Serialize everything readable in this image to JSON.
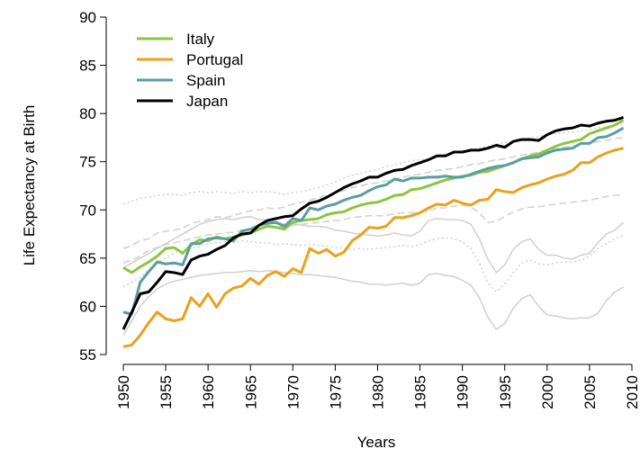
{
  "chart_data": {
    "type": "line",
    "x_label": "Years",
    "y_label": "Life Expectancy at Birth",
    "x": [
      1950,
      1951,
      1952,
      1953,
      1954,
      1955,
      1956,
      1957,
      1958,
      1959,
      1960,
      1961,
      1962,
      1963,
      1964,
      1965,
      1966,
      1967,
      1968,
      1969,
      1970,
      1971,
      1972,
      1973,
      1974,
      1975,
      1976,
      1977,
      1978,
      1979,
      1980,
      1981,
      1982,
      1983,
      1984,
      1985,
      1986,
      1987,
      1988,
      1989,
      1990,
      1991,
      1992,
      1993,
      1994,
      1995,
      1996,
      1997,
      1998,
      1999,
      2000,
      2001,
      2002,
      2003,
      2004,
      2005,
      2006,
      2007,
      2008,
      2009
    ],
    "xlim": [
      1950,
      2010
    ],
    "xticks": [
      1950,
      1955,
      1960,
      1965,
      1970,
      1975,
      1980,
      1985,
      1990,
      1995,
      2000,
      2005,
      2010
    ],
    "ylim": [
      55,
      90
    ],
    "yticks": [
      55,
      60,
      65,
      70,
      75,
      80,
      85,
      90
    ],
    "grid": false,
    "legend_position": "top-left",
    "series": [
      {
        "color": "#d0d0d0",
        "line_style": "dotted",
        "values": [
          70.6,
          70.9,
          71.2,
          71.3,
          71.5,
          71.6,
          71.6,
          71.5,
          71.8,
          71.9,
          71.8,
          71.9,
          71.8,
          71.7,
          71.9,
          71.8,
          71.9,
          71.9,
          71.8,
          71.6,
          71.8,
          71.9,
          72.1,
          72.3,
          72.6,
          72.9,
          73.3,
          73.6,
          73.8,
          74.0,
          74.2,
          74.5,
          74.7,
          74.9,
          75.1,
          75.2,
          75.3,
          75.6,
          75.8,
          75.9,
          76.0,
          76.2,
          76.4,
          76.6,
          76.8,
          77.0,
          77.1,
          77.3,
          77.5,
          77.6,
          77.8,
          77.9,
          78.0,
          78.1,
          78.2,
          78.3,
          78.5,
          78.6,
          78.8,
          78.9
        ]
      },
      {
        "color": "#d0d0d0",
        "line_style": "dashed",
        "values": [
          66.0,
          66.3,
          66.8,
          67.0,
          67.6,
          67.8,
          67.9,
          68.1,
          68.6,
          68.8,
          69.0,
          69.3,
          69.2,
          69.4,
          69.7,
          69.9,
          70.0,
          70.2,
          70.1,
          70.3,
          70.6,
          70.8,
          71.0,
          71.3,
          71.5,
          71.8,
          72.0,
          72.3,
          72.5,
          72.7,
          72.8,
          73.0,
          73.2,
          73.4,
          73.6,
          73.7,
          73.9,
          74.1,
          74.2,
          74.3,
          74.5,
          74.7,
          74.8,
          75.0,
          75.2,
          75.3,
          75.5,
          75.7,
          75.8,
          76.0,
          76.2,
          76.3,
          76.5,
          76.6,
          76.8,
          76.9,
          77.1,
          77.2,
          77.4,
          77.5
        ]
      },
      {
        "color": "#d0d0d0",
        "line_style": "solid",
        "values": [
          64.0,
          64.5,
          65.0,
          65.5,
          66.0,
          66.5,
          67.0,
          67.5,
          68.0,
          68.5,
          68.8,
          69.0,
          69.1,
          69.0,
          69.2,
          69.3,
          69.0,
          68.9,
          68.8,
          68.5,
          68.6,
          68.4,
          68.3,
          68.3,
          68.2,
          67.9,
          67.8,
          67.6,
          67.5,
          67.4,
          67.3,
          67.4,
          67.6,
          67.4,
          67.3,
          67.8,
          68.9,
          69.1,
          69.0,
          69.0,
          68.9,
          68.5,
          67.0,
          64.9,
          63.5,
          64.3,
          65.9,
          66.7,
          67.0,
          65.9,
          65.3,
          65.3,
          65.0,
          64.9,
          65.3,
          65.5,
          66.6,
          67.5,
          67.9,
          68.7
        ]
      },
      {
        "color": "#d0d0d0",
        "line_style": "solid",
        "values": [
          57.0,
          58.5,
          60.0,
          61.0,
          61.8,
          62.3,
          62.6,
          62.8,
          63.0,
          63.2,
          63.3,
          63.4,
          63.5,
          63.5,
          63.6,
          63.7,
          63.6,
          63.7,
          63.6,
          63.5,
          63.4,
          63.3,
          63.3,
          63.2,
          63.1,
          63.0,
          62.8,
          62.6,
          62.5,
          62.3,
          62.3,
          62.2,
          62.3,
          62.4,
          62.2,
          62.4,
          63.3,
          63.4,
          63.2,
          63.1,
          62.7,
          62.2,
          60.9,
          58.9,
          57.6,
          58.2,
          59.8,
          60.8,
          61.2,
          60.0,
          59.1,
          59.0,
          58.8,
          58.7,
          58.8,
          58.8,
          59.3,
          60.6,
          61.5,
          62.0
        ]
      },
      {
        "color": "#d0d0d0",
        "line_style": "dashed",
        "values": [
          64.5,
          64.8,
          65.2,
          65.8,
          66.1,
          66.4,
          66.6,
          66.8,
          67.0,
          67.2,
          67.4,
          67.5,
          67.6,
          67.7,
          67.9,
          68.0,
          68.0,
          68.2,
          68.2,
          68.3,
          68.4,
          68.5,
          68.6,
          68.7,
          68.8,
          68.9,
          69.0,
          69.2,
          69.3,
          69.4,
          69.4,
          69.4,
          69.6,
          69.7,
          69.7,
          69.8,
          69.9,
          70.2,
          70.2,
          70.4,
          70.5,
          70.3,
          69.7,
          68.7,
          68.8,
          69.3,
          69.8,
          70.1,
          70.3,
          70.3,
          70.5,
          70.6,
          70.7,
          70.8,
          70.9,
          71.0,
          71.2,
          71.4,
          71.5,
          71.6
        ]
      },
      {
        "color": "#d0d0d0",
        "line_style": "dotted",
        "values": [
          62.0,
          62.5,
          63.0,
          63.8,
          64.5,
          65.0,
          65.5,
          65.8,
          66.0,
          66.2,
          66.5,
          66.6,
          66.7,
          66.6,
          66.8,
          66.7,
          66.6,
          66.6,
          66.4,
          66.5,
          66.4,
          66.3,
          66.4,
          66.3,
          66.2,
          66.1,
          66.0,
          65.9,
          66.0,
          65.9,
          66.0,
          66.1,
          66.2,
          66.3,
          66.2,
          66.4,
          66.8,
          67.0,
          67.1,
          67.0,
          66.7,
          66.0,
          64.5,
          62.4,
          61.5,
          62.3,
          63.5,
          64.5,
          64.8,
          64.4,
          64.3,
          64.5,
          64.6,
          64.6,
          64.8,
          65.2,
          66.0,
          66.5,
          67.0,
          67.4
        ]
      },
      {
        "name": "Italy",
        "color": "#8cc63f",
        "line_style": "solid",
        "values": [
          64.0,
          63.5,
          64.1,
          64.6,
          65.2,
          66.0,
          66.1,
          65.5,
          66.4,
          66.9,
          66.8,
          67.2,
          67.0,
          67.2,
          67.4,
          67.6,
          68.0,
          68.3,
          68.2,
          68.0,
          68.7,
          68.9,
          69.0,
          69.1,
          69.5,
          69.7,
          69.8,
          70.2,
          70.5,
          70.7,
          70.8,
          71.1,
          71.5,
          71.6,
          72.1,
          72.2,
          72.5,
          72.8,
          73.1,
          73.3,
          73.5,
          73.6,
          73.9,
          74.0,
          74.3,
          74.6,
          74.9,
          75.3,
          75.6,
          75.8,
          76.2,
          76.6,
          76.9,
          77.1,
          77.3,
          77.9,
          78.2,
          78.5,
          78.8,
          79.3
        ]
      },
      {
        "name": "Portugal",
        "color": "#e8a21c",
        "line_style": "solid",
        "values": [
          55.8,
          56.0,
          57.0,
          58.3,
          59.4,
          58.7,
          58.5,
          58.7,
          60.9,
          60.0,
          61.3,
          59.9,
          61.3,
          61.9,
          62.1,
          62.9,
          62.3,
          63.2,
          63.6,
          63.1,
          63.9,
          63.5,
          66.0,
          65.5,
          65.9,
          65.2,
          65.6,
          66.8,
          67.4,
          68.2,
          68.1,
          68.3,
          69.2,
          69.2,
          69.4,
          69.7,
          70.2,
          70.6,
          70.5,
          71.0,
          70.7,
          70.5,
          71.0,
          71.1,
          72.1,
          71.9,
          71.8,
          72.3,
          72.6,
          72.8,
          73.2,
          73.5,
          73.7,
          74.1,
          74.9,
          74.9,
          75.5,
          75.9,
          76.2,
          76.4
        ]
      },
      {
        "name": "Spain",
        "color": "#5b9ea0",
        "line_style": "solid",
        "values": [
          59.4,
          59.2,
          62.5,
          63.6,
          64.6,
          64.4,
          64.5,
          64.3,
          66.5,
          66.5,
          67.0,
          67.1,
          67.0,
          66.8,
          67.8,
          68.0,
          68.4,
          68.6,
          68.7,
          68.3,
          69.1,
          68.9,
          70.2,
          70.0,
          70.4,
          70.6,
          71.0,
          71.3,
          71.5,
          72.0,
          72.4,
          72.6,
          73.2,
          73.0,
          73.3,
          73.3,
          73.4,
          73.4,
          73.5,
          73.4,
          73.4,
          73.7,
          74.0,
          74.3,
          74.5,
          74.6,
          74.9,
          75.3,
          75.4,
          75.5,
          75.9,
          76.2,
          76.3,
          76.4,
          76.9,
          76.9,
          77.5,
          77.6,
          78.0,
          78.5
        ]
      },
      {
        "name": "Japan",
        "color": "#000000",
        "line_style": "solid",
        "values": [
          57.6,
          59.4,
          61.3,
          61.5,
          62.5,
          63.6,
          63.5,
          63.3,
          64.8,
          65.2,
          65.4,
          65.9,
          66.3,
          67.1,
          67.5,
          67.6,
          68.4,
          68.9,
          69.1,
          69.3,
          69.4,
          70.1,
          70.7,
          70.9,
          71.3,
          71.8,
          72.3,
          72.7,
          73.0,
          73.4,
          73.4,
          73.8,
          74.1,
          74.2,
          74.6,
          74.9,
          75.2,
          75.6,
          75.6,
          76.0,
          76.0,
          76.2,
          76.2,
          76.4,
          76.7,
          76.5,
          77.1,
          77.3,
          77.3,
          77.2,
          77.8,
          78.2,
          78.4,
          78.5,
          78.8,
          78.7,
          79.0,
          79.2,
          79.3,
          79.6
        ]
      }
    ]
  }
}
